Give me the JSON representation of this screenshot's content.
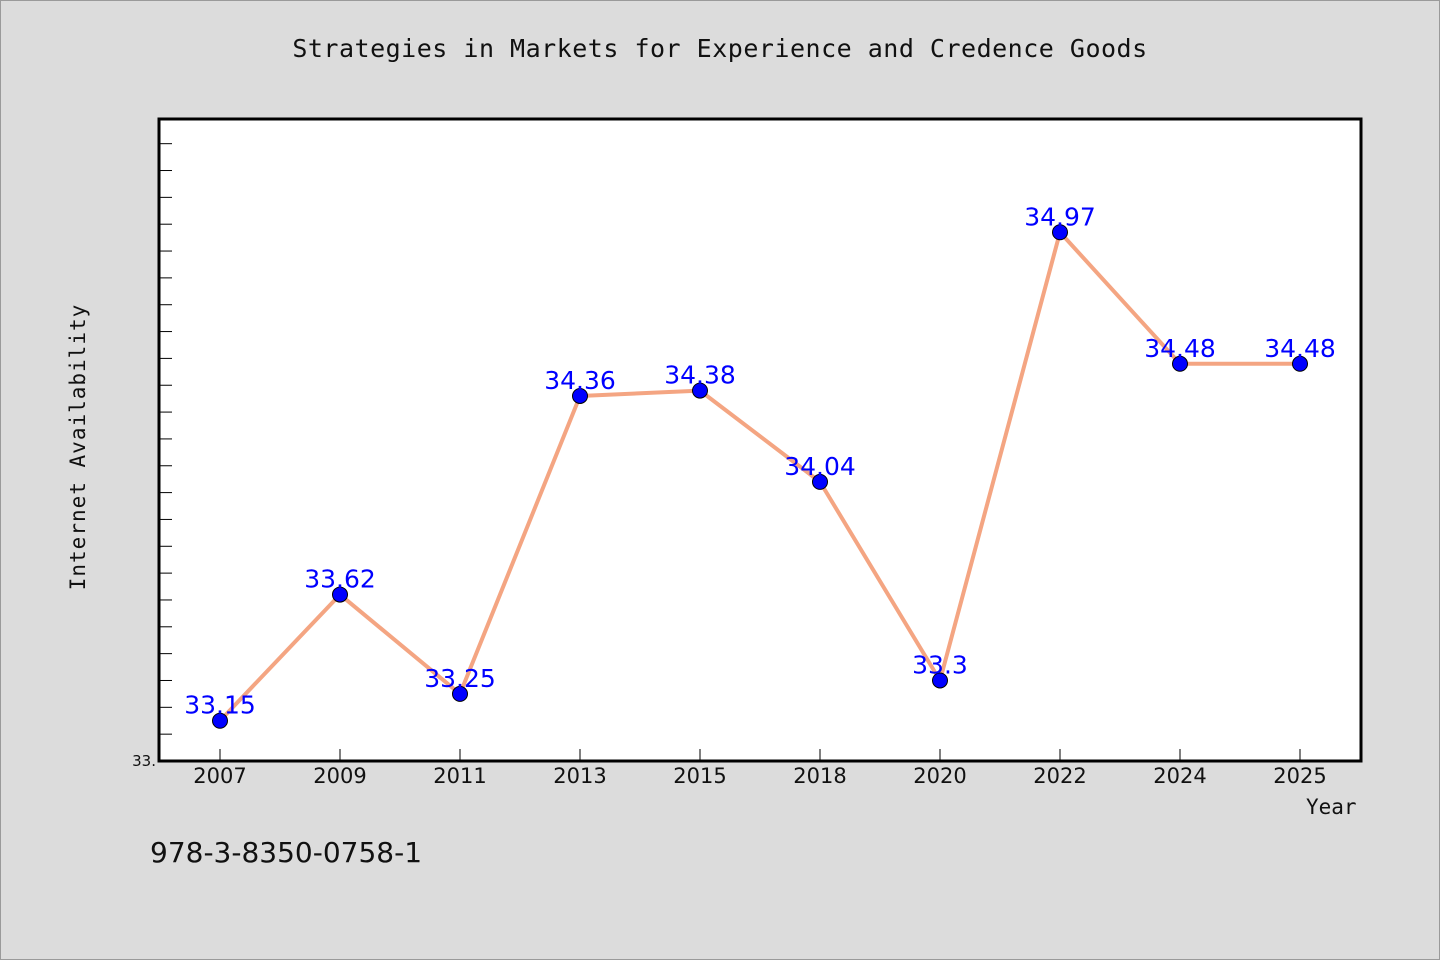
{
  "chart_data": {
    "type": "line",
    "title": "Strategies in Markets for Experience and Credence Goods",
    "xlabel": "Year",
    "ylabel": "Internet Availability",
    "categories": [
      "2007",
      "2009",
      "2011",
      "2013",
      "2015",
      "2018",
      "2020",
      "2022",
      "2024",
      "2025"
    ],
    "series": [
      {
        "values": [
          33.15,
          33.62,
          33.25,
          34.36,
          34.38,
          34.04,
          33.3,
          34.97,
          34.48,
          34.48
        ],
        "labels": [
          "33.15",
          "33.62",
          "33.25",
          "34.36",
          "34.38",
          "34.04",
          "33.3",
          "34.97",
          "34.48",
          "34.48"
        ],
        "line_color": "#f4a582",
        "marker_color": "#0000ff"
      }
    ],
    "ylim": [
      33.0,
      35.4
    ],
    "y_tick_label": "33.",
    "grid": false
  },
  "annotation": "978-3-8350-0758-1"
}
